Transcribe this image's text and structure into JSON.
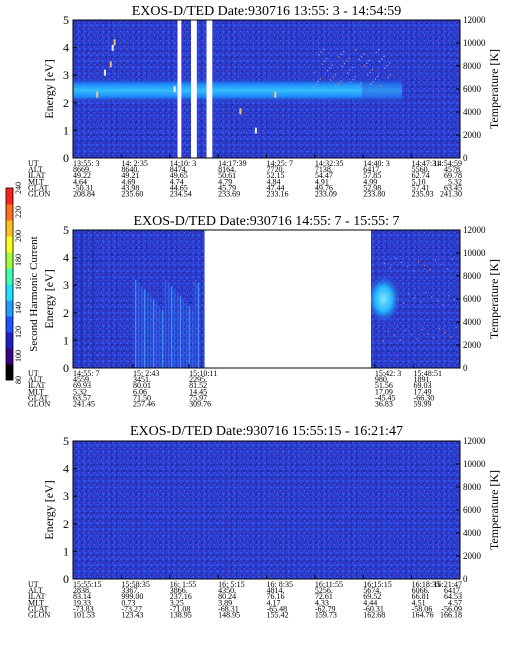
{
  "colorbar": {
    "label": "Second Harmonic Current",
    "ticks": [
      "80",
      "100",
      "120",
      "140",
      "160",
      "180",
      "200",
      "220",
      "240"
    ]
  },
  "chart_data": [
    {
      "type": "heatmap",
      "title": "EXOS-D/TED   Date:930716  13:55: 3 - 14:54:59",
      "ylabel": "Energy [eV]",
      "y2label": "Temperature [K]",
      "ylim": [
        0,
        5
      ],
      "yticks": [
        "0",
        "1",
        "2",
        "3",
        "4",
        "5"
      ],
      "y2lim": [
        0,
        12000
      ],
      "y2ticks": [
        "0",
        "2000",
        "4000",
        "6000",
        "8000",
        "10000",
        "12000"
      ],
      "ephemeris": {
        "labels": [
          "UT",
          "ALT",
          "ILAT",
          "MLT",
          "GLAT",
          "GLON"
        ],
        "columns": [
          [
            "13:55: 3",
            "8669.",
            "49.22",
            "4.64",
            "-50.31",
            "208.84"
          ],
          [
            "14: 2:35",
            "8640.",
            "49.21",
            "4.69",
            "43.98",
            "235.60"
          ],
          [
            "14:10: 3",
            "8474.",
            "49.65",
            "4.74",
            "44.65",
            "234.54"
          ],
          [
            "14:17:39",
            "8164.",
            "50.61",
            "4.79",
            "45.79",
            "233.69"
          ],
          [
            "14:25: 7",
            "7720.",
            "52.15",
            "4.84",
            "47.44",
            "233.16"
          ],
          [
            "14:32:35",
            "7138.",
            "54.47",
            "4.91",
            "49.76",
            "233.09"
          ],
          [
            "14:40: 3",
            "6417.",
            "57.85",
            "4.99",
            "52.98",
            "233.80"
          ],
          [
            "14:47:31",
            "5560.",
            "62.74",
            "5.10",
            "57.41",
            "235.93"
          ],
          [
            "14:54:59",
            "4578.",
            "69.78",
            "5.32",
            "63.45",
            "241.30"
          ]
        ]
      },
      "data_gaps": [
        [
          0.27,
          0.28
        ],
        [
          0.305,
          0.32
        ],
        [
          0.345,
          0.36
        ]
      ],
      "features": [
        {
          "name": "warm band",
          "x_range": [
            0.0,
            0.85
          ],
          "energy_range": [
            2.0,
            2.9
          ],
          "level": 150
        }
      ]
    },
    {
      "type": "heatmap",
      "title": "EXOS-D/TED   Date:930716  14:55: 7 - 15:55: 7",
      "ylabel": "Energy [eV]",
      "y2label": "Temperature [K]",
      "ylim": [
        0,
        5
      ],
      "yticks": [
        "0",
        "1",
        "2",
        "3",
        "4",
        "5"
      ],
      "y2lim": [
        0,
        12000
      ],
      "y2ticks": [
        "0",
        "2000",
        "4000",
        "6000",
        "8000",
        "10000",
        "12000"
      ],
      "ephemeris": {
        "labels": [
          "UT",
          "ALT",
          "ILAT",
          "MLT",
          "GLAT",
          "GLON"
        ],
        "columns": [
          [
            "14:55: 7",
            "4559.",
            "69.93",
            "5.32",
            "63.57",
            "241.45"
          ],
          [
            "15: 2:43",
            "3451.",
            "80.01",
            "6.06",
            "71.50",
            "257.46"
          ],
          [
            "15:10:11",
            "2295.",
            "81.52",
            "14.45",
            "75.97",
            "309.76"
          ],
          [
            "15:42: 3",
            "980.",
            "51.56",
            "17.09",
            "-45.45",
            "36.83"
          ],
          [
            "15:48:51",
            "1891.",
            "69.03",
            "17.49",
            "-66.30",
            "59.99"
          ]
        ],
        "column_x": [
          0.0,
          0.155,
          0.3,
          0.78,
          0.88
        ]
      },
      "data_gaps": [
        [
          0.34,
          0.77
        ]
      ],
      "features": [
        {
          "name": "striations",
          "x_range": [
            0.16,
            0.33
          ],
          "energy_range": [
            0.0,
            3.2
          ],
          "level": 130
        },
        {
          "name": "hot spot",
          "x_range": [
            0.775,
            0.83
          ],
          "energy_range": [
            2.0,
            3.0
          ],
          "level": 210
        }
      ]
    },
    {
      "type": "heatmap",
      "title": "EXOS-D/TED   Date:930716  15:55:15 - 16:21:47",
      "ylabel": "Energy [eV]",
      "y2label": "Temperature [K]",
      "ylim": [
        0,
        5
      ],
      "yticks": [
        "0",
        "1",
        "2",
        "3",
        "4",
        "5"
      ],
      "y2lim": [
        0,
        12000
      ],
      "y2ticks": [
        "0",
        "2000",
        "4000",
        "6000",
        "8000",
        "10000",
        "12000"
      ],
      "ephemeris": {
        "labels": [
          "UT",
          "ALT",
          "ILAT",
          "MLT",
          "GLAT",
          "GLON"
        ],
        "columns": [
          [
            "15:55:15",
            "2838.",
            "83.14",
            "19.33",
            "-73.83",
            "101.53"
          ],
          [
            "15:58:35",
            "3367.",
            "999.00",
            "0.73",
            "-73.27",
            "123.43"
          ],
          [
            "16: 1:55",
            "3866.",
            "237.16",
            "3.25",
            "-71.08",
            "138.95"
          ],
          [
            "16: 5:15",
            "4350.",
            "80.24",
            "3.89",
            "-68.31",
            "148.95"
          ],
          [
            "16: 8:35",
            "4814.",
            "76.16",
            "4.17",
            "-65.48",
            "155.42"
          ],
          [
            "16:11:55",
            "5256.",
            "72.61",
            "4.33",
            "-62.79",
            "159.73"
          ],
          [
            "16:15:15",
            "5674.",
            "69.52",
            "4.44",
            "-60.31",
            "162.68"
          ],
          [
            "16:18:35",
            "6066.",
            "66.81",
            "4.51",
            "-58.06",
            "164.76"
          ],
          [
            "16:21:47",
            "6417.",
            "64.53",
            "4.57",
            "-56.09",
            "166.18"
          ]
        ]
      },
      "data_gaps": [],
      "features": []
    }
  ]
}
